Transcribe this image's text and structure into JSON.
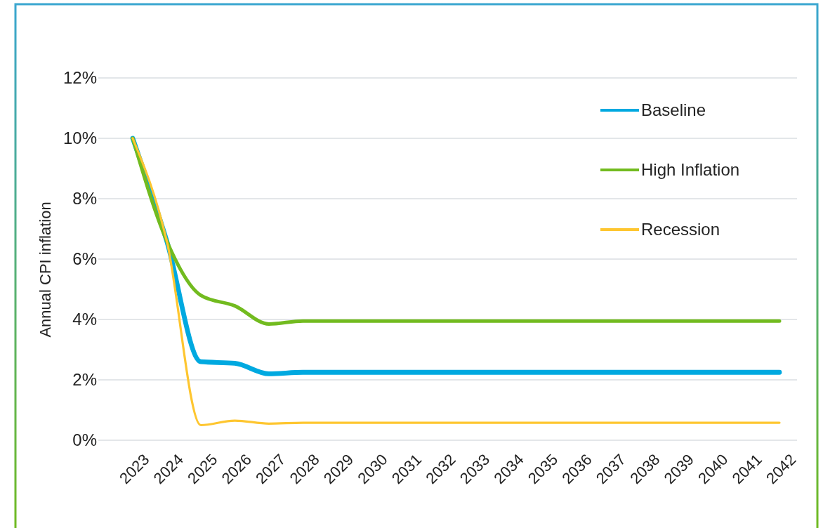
{
  "chart_data": {
    "type": "line",
    "ylabel": "Annual CPI inflation",
    "categories": [
      "2023",
      "2024",
      "2025",
      "2026",
      "2027",
      "2028",
      "2029",
      "2030",
      "2031",
      "2032",
      "2033",
      "2034",
      "2035",
      "2036",
      "2037",
      "2038",
      "2039",
      "2040",
      "2041",
      "2042"
    ],
    "series": [
      {
        "name": "Baseline",
        "color": "#00a9e0",
        "values": [
          10,
          6.6,
          2.6,
          2.55,
          2.2,
          2.25,
          2.25,
          2.25,
          2.25,
          2.25,
          2.25,
          2.25,
          2.25,
          2.25,
          2.25,
          2.25,
          2.25,
          2.25,
          2.25,
          2.25
        ]
      },
      {
        "name": "High Inflation",
        "color": "#72bb1f",
        "values": [
          10,
          6.6,
          4.8,
          4.45,
          3.85,
          3.95,
          3.95,
          3.95,
          3.95,
          3.95,
          3.95,
          3.95,
          3.95,
          3.95,
          3.95,
          3.95,
          3.95,
          3.95,
          3.95,
          3.95
        ]
      },
      {
        "name": "Recession",
        "color": "#fec630",
        "values": [
          10,
          6.6,
          0.5,
          0.65,
          0.55,
          0.58,
          0.58,
          0.58,
          0.58,
          0.58,
          0.58,
          0.58,
          0.58,
          0.58,
          0.58,
          0.58,
          0.58,
          0.58,
          0.58,
          0.58
        ]
      }
    ],
    "ylim": [
      0,
      12
    ],
    "yticks": [
      {
        "value": 0,
        "label": "0%"
      },
      {
        "value": 2,
        "label": "2%"
      },
      {
        "value": 4,
        "label": "4%"
      },
      {
        "value": 6,
        "label": "6%"
      },
      {
        "value": 8,
        "label": "8%"
      },
      {
        "value": 10,
        "label": "10%"
      },
      {
        "value": 12,
        "label": "12%"
      }
    ],
    "grid": "y",
    "legend": "top right",
    "marker": "none",
    "line_style": "solid"
  }
}
